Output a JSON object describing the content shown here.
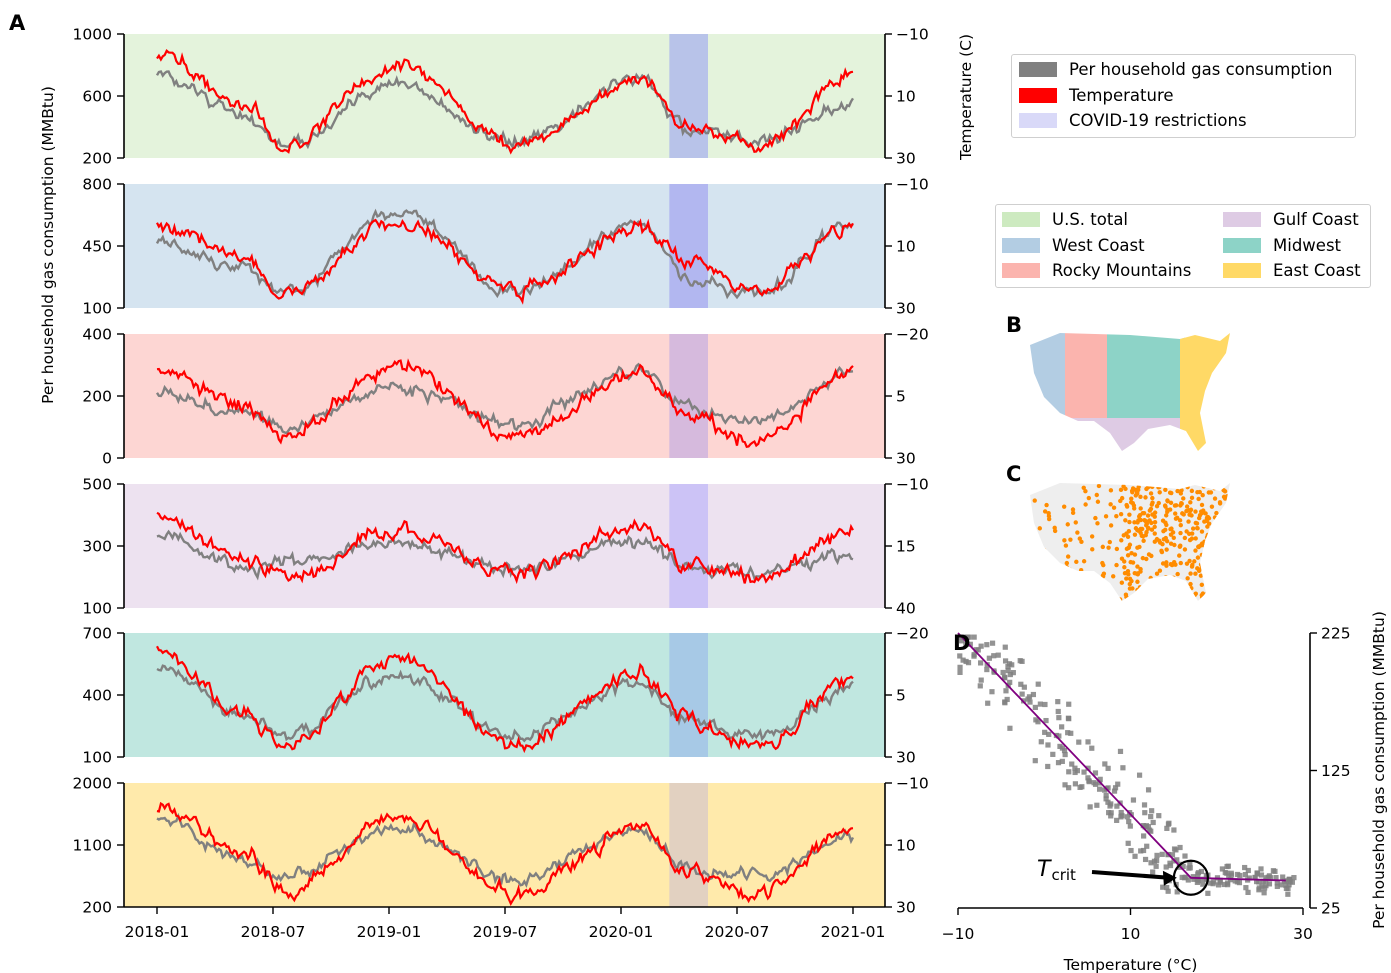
{
  "panel_labels": {
    "A": "A",
    "B": "B",
    "C": "C",
    "D": "D"
  },
  "legend_main": [
    {
      "label": "Per household gas consumption",
      "color": "#808080"
    },
    {
      "label": "Temperature",
      "color": "#ff0000"
    },
    {
      "label": "COVID-19 restrictions",
      "color": "#d9d9f8"
    }
  ],
  "legend_regions": [
    {
      "label": "U.S. total",
      "color": "#cdeac0"
    },
    {
      "label": "West Coast",
      "color": "#b3cde3"
    },
    {
      "label": "Rocky Mountains",
      "color": "#fbb4ae"
    },
    {
      "label": "Gulf Coast",
      "color": "#decbe4"
    },
    {
      "label": "Midwest",
      "color": "#8dd3c7"
    },
    {
      "label": "East Coast",
      "color": "#ffd966"
    }
  ],
  "colors": {
    "gas": "#808080",
    "temp": "#ff0000",
    "covid": "#aaaaee",
    "scatter": "#808080",
    "fit": "#800080",
    "pipeline": "#ff8c00"
  },
  "chart_data": [
    {
      "type": "line",
      "panel": "A",
      "ylabel": "Per household gas consumption (MMBtu)",
      "y2label": "Temperature (C)",
      "x_ticks": [
        "2018-01",
        "2018-07",
        "2019-01",
        "2019-07",
        "2020-01",
        "2020-07",
        "2021-01"
      ],
      "covid_window": [
        "2020-03-15",
        "2020-05-15"
      ],
      "series": [
        {
          "name": "Per household gas consumption"
        },
        {
          "name": "Temperature"
        }
      ],
      "subplots": [
        {
          "region": "U.S. total",
          "bg": "#cdeac0",
          "covid_color": "#aab3ee",
          "ylim": [
            200,
            1000
          ],
          "yticks": [
            "200",
            "600",
            "1000"
          ],
          "y2lim": [
            30,
            -10
          ],
          "y2ticks": [
            "30",
            "10",
            "−10"
          ],
          "gas_peaks": [
            720,
            480,
            280,
            680,
            300,
            700,
            380,
            320,
            540
          ],
          "temp_peaks": [
            900,
            550,
            280,
            800,
            270,
            720,
            400,
            260,
            740
          ]
        },
        {
          "region": "West Coast",
          "bg": "#b3cde3",
          "covid_color": "#a5a8f0",
          "ylim": [
            100,
            800
          ],
          "yticks": [
            "100",
            "450",
            "800"
          ],
          "y2lim": [
            30,
            -10
          ],
          "y2ticks": [
            "30",
            "10",
            "−10"
          ],
          "gas_peaks": [
            470,
            320,
            180,
            640,
            190,
            570,
            260,
            180,
            580
          ],
          "temp_peaks": [
            560,
            400,
            180,
            590,
            200,
            540,
            380,
            200,
            560
          ]
        },
        {
          "region": "Rocky Mountains",
          "bg": "#fbb4ae",
          "covid_color": "#c8b0e0",
          "ylim": [
            0,
            400
          ],
          "yticks": [
            "0",
            "200",
            "400"
          ],
          "y2lim": [
            30,
            -20
          ],
          "y2ticks": [
            "30",
            "5",
            "−20"
          ],
          "gas_peaks": [
            210,
            150,
            100,
            230,
            110,
            280,
            160,
            120,
            280
          ],
          "temp_peaks": [
            280,
            170,
            70,
            300,
            70,
            280,
            140,
            50,
            280
          ]
        },
        {
          "region": "Gulf Coast",
          "bg": "#decbe4",
          "covid_color": "#c0b8f8",
          "ylim": [
            100,
            500
          ],
          "yticks": [
            "100",
            "300",
            "500"
          ],
          "y2lim": [
            40,
            -10
          ],
          "y2ticks": [
            "40",
            "15",
            "−10"
          ],
          "gas_peaks": [
            330,
            230,
            250,
            310,
            220,
            320,
            230,
            220,
            270
          ],
          "temp_peaks": [
            400,
            260,
            200,
            350,
            210,
            360,
            240,
            200,
            340
          ]
        },
        {
          "region": "Midwest",
          "bg": "#8dd3c7",
          "covid_color": "#9fbfe8",
          "ylim": [
            100,
            700
          ],
          "yticks": [
            "100",
            "400",
            "700"
          ],
          "y2lim": [
            30,
            -20
          ],
          "y2ticks": [
            "30",
            "5",
            "−20"
          ],
          "gas_peaks": [
            540,
            300,
            200,
            500,
            200,
            460,
            280,
            200,
            430
          ],
          "temp_peaks": [
            600,
            320,
            150,
            570,
            160,
            500,
            280,
            150,
            480
          ]
        },
        {
          "region": "East Coast",
          "bg": "#ffd966",
          "covid_color": "#d8c8c8",
          "ylim": [
            200,
            2000
          ],
          "yticks": [
            "200",
            "1100",
            "2000"
          ],
          "y2lim": [
            30,
            -10
          ],
          "y2ticks": [
            "30",
            "10",
            "−10"
          ],
          "gas_peaks": [
            1500,
            900,
            650,
            1350,
            600,
            1300,
            750,
            650,
            1250
          ],
          "temp_peaks": [
            1650,
            1000,
            450,
            1450,
            400,
            1350,
            700,
            400,
            1300
          ]
        }
      ]
    },
    {
      "type": "scatter",
      "panel": "D",
      "xlabel": "Temperature (°C)",
      "ylabel": "Per household gas consumption (MMBtu)",
      "xlim": [
        -10,
        30
      ],
      "ylim": [
        25,
        225
      ],
      "xticks": [
        "−10",
        "10",
        "30"
      ],
      "yticks": [
        "25",
        "125",
        "225"
      ],
      "annotation": {
        "text": "T",
        "subscript": "crit",
        "at": [
          17,
          47
        ]
      },
      "fit_line": [
        [
          -10,
          225
        ],
        [
          17,
          47
        ],
        [
          28,
          45
        ]
      ]
    }
  ]
}
